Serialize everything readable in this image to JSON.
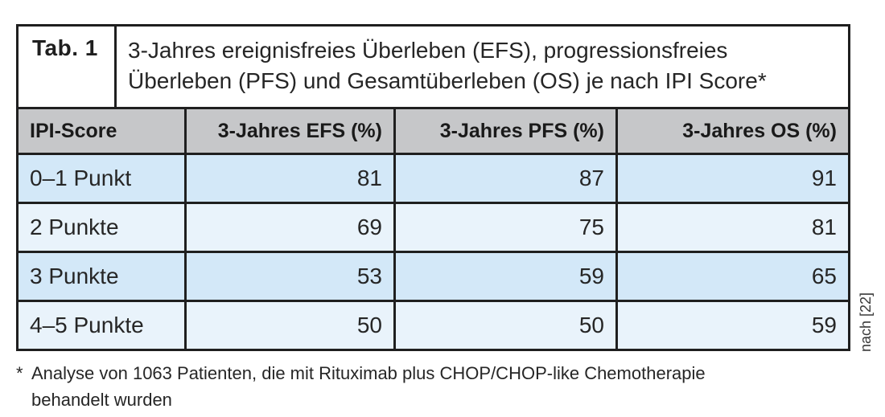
{
  "chart_data": {
    "type": "table",
    "table_tag": "Tab. 1",
    "title": "3-Jahres ereignisfreies Überleben (EFS), progressionsfreies Überleben (PFS) und Gesamtüberleben (OS) je nach IPI Score*",
    "title_lines": [
      "3-Jahres ereignisfreies Überleben (EFS), progressionsfreies",
      "Überleben (PFS) und Gesamtüberleben (OS) je nach IPI Score*"
    ],
    "columns": [
      "IPI-Score",
      "3-Jahres EFS (%)",
      "3-Jahres PFS (%)",
      "3-Jahres OS (%)"
    ],
    "rows": [
      [
        "0–1 Punkt",
        81,
        87,
        91
      ],
      [
        "2 Punkte",
        69,
        75,
        81
      ],
      [
        "3 Punkte",
        53,
        59,
        65
      ],
      [
        "4–5 Punkte",
        50,
        50,
        59
      ]
    ]
  },
  "source_note": "nach [22]",
  "footnote": {
    "marker": "*",
    "lines": [
      "Analyse von 1063 Patienten, die mit Rituximab plus CHOP/CHOP-like Chemotherapie",
      "behandelt wurden"
    ]
  },
  "colors": {
    "border": "#1f1f1f",
    "header_bg": "#c6c7c9",
    "row_dark_bg": "#d3e8f8",
    "row_light_bg": "#e9f3fb",
    "text": "#262626",
    "source_note_text": "#3a3a3a"
  }
}
